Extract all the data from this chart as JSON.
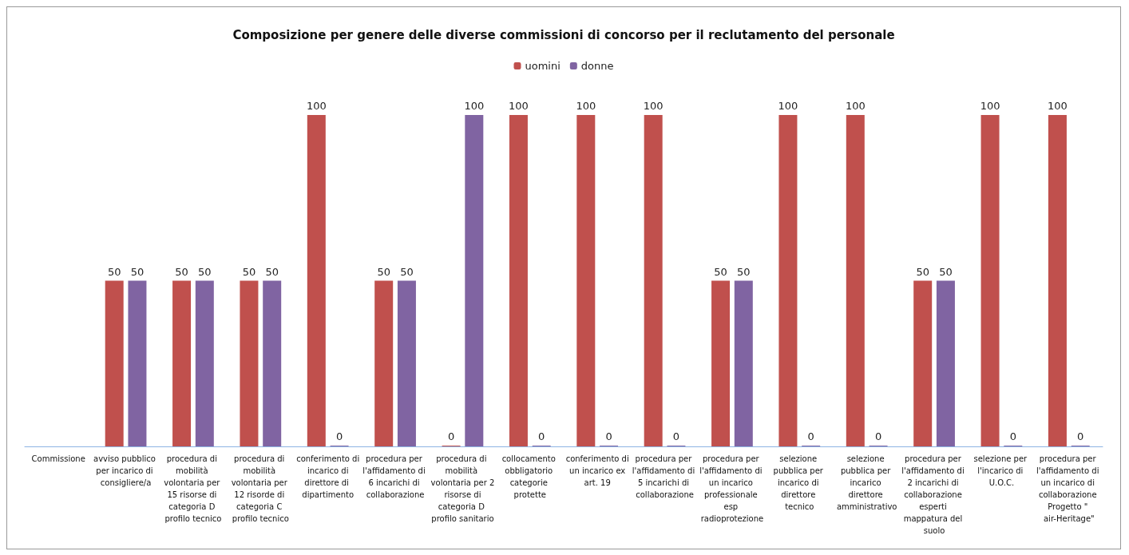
{
  "chart_data": {
    "type": "bar",
    "title": "Composizione per genere delle diverse commissioni di concorso per il reclutamento del personale",
    "categories": [
      "Commissione",
      "avviso pubblico per incarico di consigliere/a",
      "procedura di mobilità volontaria per 15 risorse di categoria D profilo tecnico",
      "procedura di mobilità volontaria per 12 risorde di categoria C profilo tecnico",
      "conferimento di incarico di direttore di dipartimento",
      "procedura per l'affidamento di 6 incarichi di collaborazione",
      "procedura di mobilità volontaria per 2 risorse di categoria D profilo sanitario",
      "collocamento obbligatorio categorie protette",
      "conferimento di un incarico ex art. 19",
      "procedura per l'affidamento di 5 incarichi di collaborazione",
      "procedura per l'affidamento di un incarico professionale esp radioprotezione",
      "selezione pubblica per incarico di direttore tecnico",
      "selezione pubblica per incarico direttore amministrativo",
      "procedura per l'affidamento di 2 incarichi di collaborazione esperti mappatura del suolo",
      "selezione per l'incarico di U.O.C.",
      "procedura per l'affidamento di un incarico di collaborazione Progetto \" air-Heritage\""
    ],
    "series": [
      {
        "name": "uomini",
        "color": "#c0504d",
        "values": [
          null,
          50,
          50,
          50,
          100,
          50,
          0,
          100,
          100,
          100,
          50,
          100,
          100,
          50,
          100,
          100
        ]
      },
      {
        "name": "donne",
        "color": "#8064a2",
        "values": [
          null,
          50,
          50,
          50,
          0,
          50,
          100,
          0,
          0,
          0,
          50,
          0,
          0,
          50,
          0,
          0
        ]
      }
    ],
    "data_labels": true,
    "legend": "top",
    "grid": false,
    "tick_labels": "x"
  }
}
